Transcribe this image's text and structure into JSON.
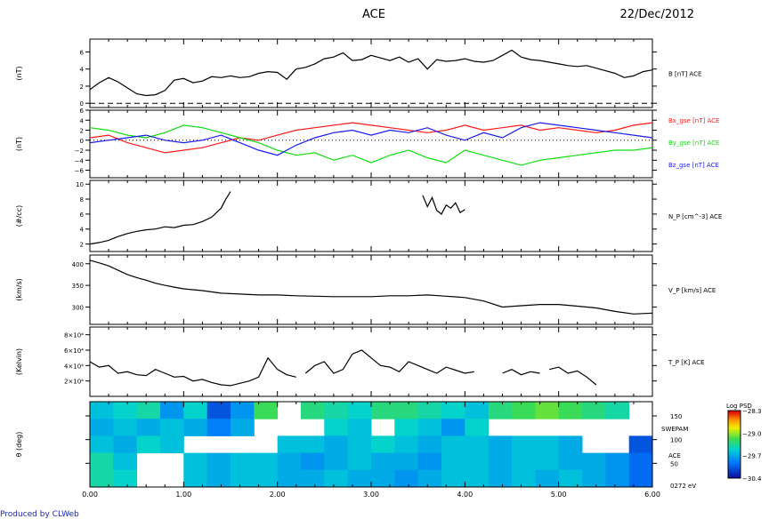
{
  "header": {
    "title": "ACE",
    "date": "22/Dec/2012"
  },
  "footer": "Produced by CLWeb",
  "chart_data": [
    {
      "type": "line",
      "ylabel": "(nT)",
      "ylim": [
        -0.5,
        7.5
      ],
      "yticks": [
        "0",
        "2",
        "4",
        "6"
      ],
      "reference_line": 0,
      "series": [
        {
          "name": "B [nT] ACE",
          "color": "#000000",
          "x": [
            0.0,
            0.1,
            0.2,
            0.3,
            0.4,
            0.5,
            0.6,
            0.7,
            0.8,
            0.9,
            1.0,
            1.1,
            1.2,
            1.3,
            1.4,
            1.5,
            1.6,
            1.7,
            1.8,
            1.9,
            2.0,
            2.1,
            2.2,
            2.3,
            2.4,
            2.5,
            2.6,
            2.7,
            2.8,
            2.9,
            3.0,
            3.1,
            3.2,
            3.3,
            3.4,
            3.5,
            3.6,
            3.7,
            3.8,
            3.9,
            4.0,
            4.1,
            4.2,
            4.3,
            4.4,
            4.5,
            4.6,
            4.7,
            4.8,
            4.9,
            5.0,
            5.1,
            5.2,
            5.3,
            5.4,
            5.5,
            5.6,
            5.7,
            5.8,
            5.9,
            6.0
          ],
          "y": [
            1.6,
            2.4,
            3.0,
            2.5,
            1.8,
            1.1,
            0.9,
            1.0,
            1.5,
            2.7,
            2.9,
            2.4,
            2.6,
            3.1,
            3.0,
            3.2,
            3.0,
            3.1,
            3.5,
            3.7,
            3.6,
            2.8,
            4.0,
            4.2,
            4.6,
            5.2,
            5.4,
            5.9,
            5.0,
            5.1,
            5.6,
            5.3,
            5.0,
            5.4,
            4.8,
            5.2,
            4.0,
            5.1,
            4.9,
            5.0,
            5.2,
            4.9,
            4.8,
            5.0,
            5.6,
            6.2,
            5.4,
            5.1,
            5.0,
            4.8,
            4.6,
            4.4,
            4.3,
            4.4,
            4.1,
            3.8,
            3.5,
            3.0,
            3.2,
            3.7,
            3.9
          ]
        }
      ]
    },
    {
      "type": "line",
      "ylabel": "(nT)",
      "ylim": [
        -7.5,
        6
      ],
      "yticks": [
        "−6",
        "−4",
        "−2",
        "0",
        "2",
        "4",
        "6"
      ],
      "reference_line": 0,
      "series": [
        {
          "name": "Bx_gse [nT] ACE",
          "color": "#ff1a1a",
          "x": [
            0.0,
            0.2,
            0.4,
            0.6,
            0.8,
            1.0,
            1.2,
            1.4,
            1.6,
            1.8,
            2.0,
            2.2,
            2.4,
            2.6,
            2.8,
            3.0,
            3.2,
            3.4,
            3.6,
            3.8,
            4.0,
            4.2,
            4.4,
            4.6,
            4.8,
            5.0,
            5.2,
            5.4,
            5.6,
            5.8,
            6.0
          ],
          "y": [
            0.5,
            1.0,
            -0.5,
            -1.5,
            -2.5,
            -2.0,
            -1.5,
            -0.5,
            0.5,
            0.0,
            1.0,
            2.0,
            2.5,
            3.0,
            3.5,
            3.0,
            2.5,
            2.0,
            1.5,
            2.0,
            3.0,
            2.0,
            2.5,
            3.0,
            2.0,
            2.5,
            2.0,
            1.5,
            2.0,
            3.0,
            3.5
          ]
        },
        {
          "name": "By_gse [nT] ACE",
          "color": "#11dd11",
          "x": [
            0.0,
            0.2,
            0.4,
            0.6,
            0.8,
            1.0,
            1.2,
            1.4,
            1.6,
            1.8,
            2.0,
            2.2,
            2.4,
            2.6,
            2.8,
            3.0,
            3.2,
            3.4,
            3.6,
            3.8,
            4.0,
            4.2,
            4.4,
            4.6,
            4.8,
            5.0,
            5.2,
            5.4,
            5.6,
            5.8,
            6.0
          ],
          "y": [
            2.5,
            2.0,
            1.0,
            0.5,
            1.5,
            3.0,
            2.5,
            1.5,
            0.5,
            -0.5,
            -2.0,
            -3.0,
            -2.5,
            -4.0,
            -3.0,
            -4.5,
            -3.0,
            -2.0,
            -3.5,
            -4.5,
            -2.0,
            -3.0,
            -4.0,
            -5.0,
            -4.0,
            -3.5,
            -3.0,
            -2.5,
            -2.0,
            -2.0,
            -1.5
          ]
        },
        {
          "name": "Bz_gse [nT] ACE",
          "color": "#1a1aee",
          "x": [
            0.0,
            0.2,
            0.4,
            0.6,
            0.8,
            1.0,
            1.2,
            1.4,
            1.6,
            1.8,
            2.0,
            2.2,
            2.4,
            2.6,
            2.8,
            3.0,
            3.2,
            3.4,
            3.6,
            3.8,
            4.0,
            4.2,
            4.4,
            4.6,
            4.8,
            5.0,
            5.2,
            5.4,
            5.6,
            5.8,
            6.0
          ],
          "y": [
            -0.5,
            0.0,
            0.5,
            1.0,
            0.0,
            -0.5,
            0.0,
            1.0,
            -0.5,
            -2.0,
            -3.0,
            -1.0,
            0.5,
            1.5,
            2.0,
            1.0,
            2.0,
            1.5,
            2.5,
            1.0,
            0.0,
            1.5,
            0.5,
            2.5,
            3.5,
            3.0,
            2.5,
            2.0,
            1.5,
            1.0,
            0.5
          ]
        }
      ]
    },
    {
      "type": "line",
      "ylabel": "(#/cc)",
      "ylim": [
        1,
        10.5
      ],
      "yticks": [
        "2",
        "4",
        "6",
        "8",
        "10"
      ],
      "series": [
        {
          "name": "N_P [cm^-3] ACE",
          "color": "#000000",
          "segments": [
            {
              "x": [
                0.0,
                0.1,
                0.2,
                0.3,
                0.4,
                0.5,
                0.6,
                0.7,
                0.8,
                0.9,
                1.0,
                1.1,
                1.2,
                1.3,
                1.4,
                1.45,
                1.5
              ],
              "y": [
                2.0,
                2.2,
                2.5,
                3.0,
                3.4,
                3.7,
                3.9,
                4.0,
                4.3,
                4.2,
                4.5,
                4.6,
                5.0,
                5.6,
                6.8,
                8.0,
                9.0
              ]
            },
            {
              "x": [
                3.55,
                3.6,
                3.65,
                3.7,
                3.75,
                3.8,
                3.85,
                3.9,
                3.95,
                4.0
              ],
              "y": [
                8.5,
                7.0,
                8.2,
                6.5,
                6.0,
                7.2,
                6.8,
                7.5,
                6.2,
                6.6
              ]
            }
          ]
        }
      ]
    },
    {
      "type": "line",
      "ylabel": "(km/s)",
      "ylim": [
        260,
        420
      ],
      "yticks": [
        "300",
        "350",
        "400"
      ],
      "series": [
        {
          "name": "V_P [km/s] ACE",
          "color": "#000000",
          "x": [
            0.0,
            0.1,
            0.2,
            0.3,
            0.4,
            0.5,
            0.6,
            0.7,
            0.8,
            0.9,
            1.0,
            1.2,
            1.4,
            1.6,
            1.8,
            2.0,
            2.2,
            2.4,
            2.6,
            2.8,
            3.0,
            3.2,
            3.4,
            3.6,
            3.8,
            4.0,
            4.2,
            4.4,
            4.6,
            4.8,
            5.0,
            5.2,
            5.4,
            5.6,
            5.8,
            6.0
          ],
          "y": [
            408,
            402,
            395,
            385,
            375,
            368,
            362,
            355,
            350,
            346,
            342,
            338,
            332,
            330,
            328,
            328,
            326,
            325,
            324,
            324,
            324,
            326,
            326,
            328,
            325,
            322,
            314,
            300,
            303,
            306,
            306,
            302,
            298,
            290,
            284,
            286
          ]
        }
      ]
    },
    {
      "type": "line",
      "ylabel": "(Kelvin)",
      "ylim": [
        0,
        90000
      ],
      "yticks": [
        "2×10⁴",
        "4×10⁴",
        "6×10⁴",
        "8×10⁴"
      ],
      "series": [
        {
          "name": "T_P [K] ACE",
          "color": "#000000",
          "segments": [
            {
              "x": [
                0.0,
                0.1,
                0.2,
                0.3,
                0.4,
                0.5,
                0.6,
                0.7,
                0.8,
                0.9,
                1.0,
                1.1,
                1.2,
                1.3,
                1.4,
                1.5,
                1.6,
                1.7,
                1.8,
                1.9,
                2.0,
                2.1,
                2.2
              ],
              "y": [
                45000,
                38000,
                40000,
                30000,
                32000,
                28000,
                27000,
                35000,
                30000,
                25000,
                26000,
                20000,
                22000,
                18000,
                15000,
                14000,
                17000,
                20000,
                25000,
                50000,
                35000,
                28000,
                25000
              ]
            },
            {
              "x": [
                2.3,
                2.4,
                2.5,
                2.6,
                2.7,
                2.8,
                2.9,
                3.0,
                3.1,
                3.2,
                3.3,
                3.4,
                3.5,
                3.6,
                3.7,
                3.8,
                3.9,
                4.0,
                4.1
              ],
              "y": [
                30000,
                40000,
                45000,
                30000,
                35000,
                55000,
                60000,
                50000,
                40000,
                38000,
                32000,
                45000,
                40000,
                35000,
                30000,
                38000,
                34000,
                30000,
                32000
              ]
            },
            {
              "x": [
                4.4,
                4.5,
                4.6,
                4.7,
                4.8
              ],
              "y": [
                30000,
                35000,
                28000,
                32000,
                30000
              ]
            },
            {
              "x": [
                4.9,
                5.0,
                5.1,
                5.2,
                5.3,
                5.4
              ],
              "y": [
                35000,
                38000,
                30000,
                33000,
                25000,
                15000
              ]
            }
          ]
        }
      ]
    },
    {
      "type": "heatmap",
      "ylabel": "θ (deg)",
      "ylim": [
        0,
        180
      ],
      "yticks": [
        "50",
        "100",
        "150"
      ],
      "side_labels": [
        "SWEPAM",
        "ACE",
        "0272 eV"
      ],
      "colorbar": {
        "title": "Log PSD",
        "ticks": [
          "−28.3",
          "−29.0",
          "−29.7",
          "−30.4"
        ],
        "range": [
          -30.4,
          -28.3
        ]
      },
      "series": [
        {
          "name": "Log PSD",
          "rows": [
            "150",
            "120",
            "90",
            "60",
            "30"
          ],
          "x": [
            0.0,
            0.25,
            0.5,
            0.75,
            1.0,
            1.25,
            1.5,
            1.75,
            2.0,
            2.25,
            2.5,
            2.75,
            3.0,
            3.25,
            3.5,
            3.75,
            4.0,
            4.25,
            4.5,
            4.75,
            5.0,
            5.25,
            5.5,
            5.75
          ],
          "values": [
            [
              -29.6,
              -29.5,
              -29.4,
              -29.8,
              -29.5,
              -30.1,
              -29.8,
              -29.2,
              null,
              -29.3,
              -29.4,
              -29.5,
              -29.3,
              -29.3,
              -29.4,
              -29.5,
              -29.6,
              -29.3,
              -29.2,
              -29.1,
              -29.2,
              -29.3,
              -29.4,
              null
            ],
            [
              -29.7,
              -29.6,
              -29.7,
              -29.6,
              -29.7,
              -29.9,
              -29.7,
              null,
              null,
              null,
              -29.5,
              -29.6,
              null,
              -29.5,
              -29.6,
              -29.8,
              -29.5,
              null,
              null,
              null,
              null,
              null,
              null,
              null
            ],
            [
              -29.6,
              -29.7,
              -29.5,
              -29.6,
              null,
              null,
              null,
              null,
              -29.6,
              -29.6,
              -29.7,
              -29.6,
              -29.5,
              -29.6,
              -29.7,
              -29.6,
              -29.6,
              -29.7,
              -29.6,
              -29.6,
              -29.7,
              null,
              null,
              -30.1
            ],
            [
              -29.4,
              -29.6,
              null,
              null,
              -29.6,
              -29.7,
              -29.6,
              -29.6,
              -29.7,
              -29.8,
              -29.7,
              -29.6,
              -29.7,
              -29.7,
              -29.8,
              -29.6,
              -29.6,
              -29.7,
              -29.6,
              -29.6,
              -29.7,
              -29.7,
              -29.8,
              -30.0
            ],
            [
              -29.4,
              -29.5,
              null,
              null,
              -29.6,
              -29.7,
              -29.6,
              -29.6,
              -29.7,
              -29.7,
              -29.6,
              -29.7,
              -29.7,
              -29.8,
              -29.7,
              -29.6,
              -29.6,
              -29.7,
              -29.6,
              -29.7,
              -29.6,
              -29.7,
              -29.8,
              -30.0
            ]
          ]
        }
      ]
    }
  ],
  "xaxis": {
    "lim": [
      0,
      6
    ],
    "ticks": [
      "0.00",
      "1.00",
      "2.00",
      "3.00",
      "4.00",
      "5.00",
      "6.00"
    ]
  }
}
